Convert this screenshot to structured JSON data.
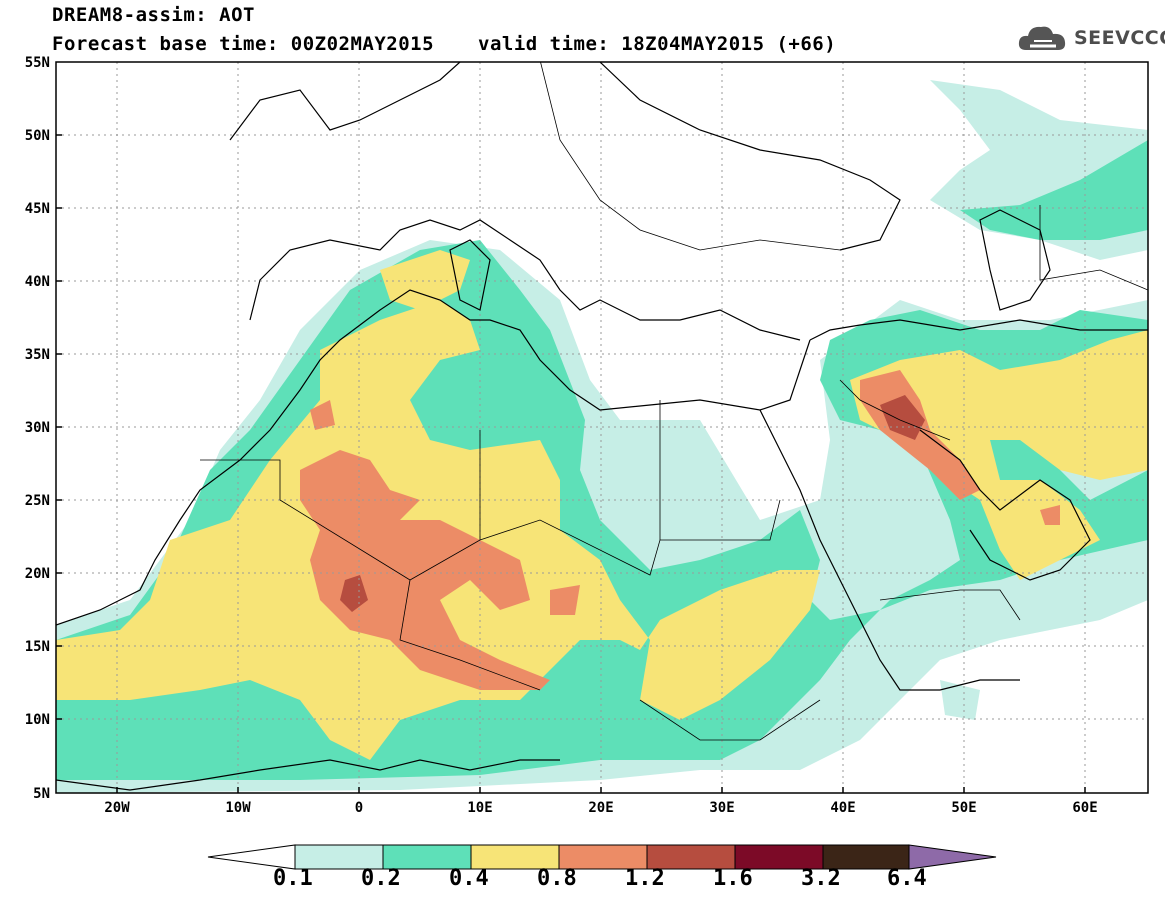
{
  "header": {
    "title_line1": "DREAM8-assim: AOT",
    "title_line2": "Forecast base time: 00Z02MAY2015",
    "valid_time": "valid time: 18Z04MAY2015 (+66)",
    "logo_text": "SEEVCCC"
  },
  "map": {
    "lat_labels": [
      "55N",
      "50N",
      "45N",
      "40N",
      "35N",
      "30N",
      "25N",
      "20N",
      "15N",
      "10N",
      "5N"
    ],
    "lon_labels": [
      "20W",
      "10W",
      "0",
      "10E",
      "20E",
      "30E",
      "40E",
      "50E",
      "60E"
    ],
    "lat_range": [
      5,
      55
    ],
    "lon_range": [
      -25,
      65
    ],
    "grid": true
  },
  "colorbar": {
    "levels": [
      "0.1",
      "0.2",
      "0.4",
      "0.8",
      "1.2",
      "1.6",
      "3.2",
      "6.4"
    ],
    "colors": [
      "#ffffff",
      "#c6eee6",
      "#5ee0b8",
      "#f7e477",
      "#ec8c66",
      "#b64d3f",
      "#7c0a27",
      "#3b2517",
      "#8e6aa8"
    ]
  },
  "icons": {
    "logo": "cloud-logo-icon"
  }
}
